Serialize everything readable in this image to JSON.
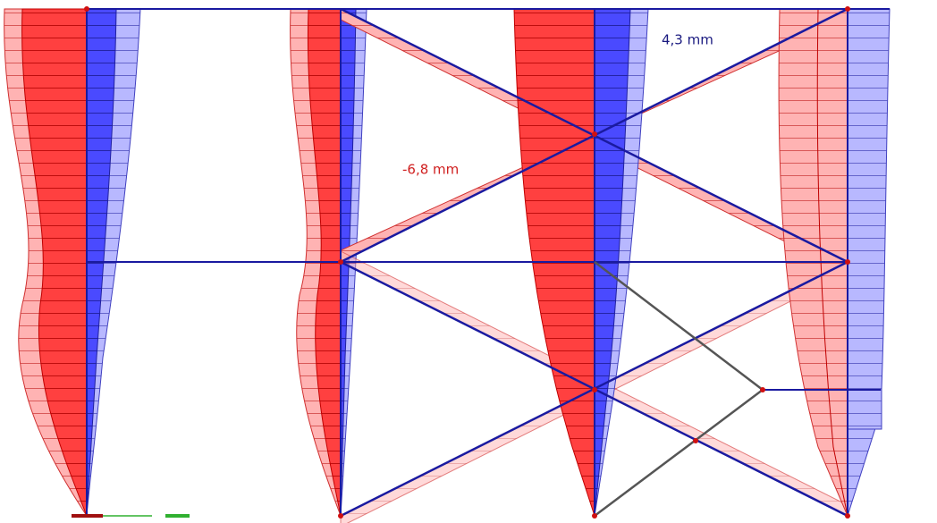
{
  "labels": {
    "max_displacement": "4,3 mm",
    "min_displacement": "-6,8 mm"
  }
}
